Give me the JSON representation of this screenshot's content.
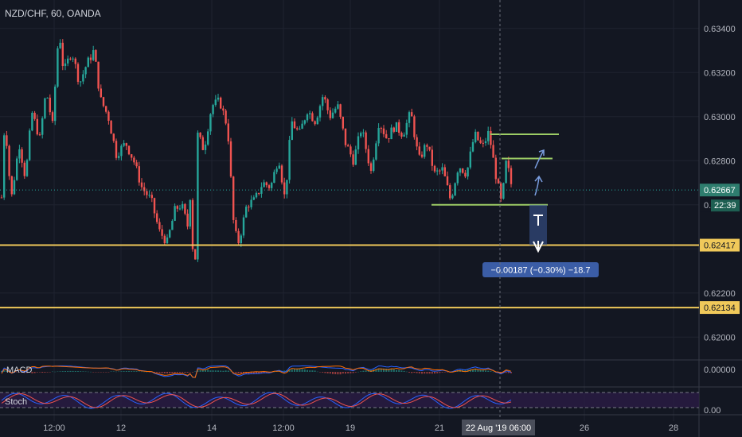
{
  "header": {
    "symbol_label": "NZD/CHF, 60, OANDA"
  },
  "colors": {
    "background": "#131722",
    "up": "#26a69a",
    "down": "#ef5350",
    "level": "#f0c95a",
    "trend": "#9ccc65",
    "price_tag": "#2e7d6e",
    "measure": "#3d5a99",
    "text": "#b2b5be",
    "stoch_band": "#2a1c45"
  },
  "chart_data": {
    "type": "candlestick",
    "ylim": [
      0.619,
      0.635
    ],
    "y_ticks": [
      "0.63400",
      "0.63200",
      "0.63000",
      "0.62800",
      "0.62200",
      "0.62000"
    ],
    "x_labels": [
      "12:00",
      "12",
      "14",
      "12:00",
      "19",
      "21",
      "26",
      "28"
    ],
    "last_price": "0.62667",
    "countdown": "22:39",
    "levels": [
      {
        "value": 0.62417,
        "label": "0.62417"
      },
      {
        "value": 0.62134,
        "label": "0.62134"
      }
    ],
    "trend_lines": [
      0.6292,
      0.6281,
      0.626
    ],
    "measure_label": "−0.00187 (−0.30%) −18.7",
    "crosshair_label": "22 Aug '19 06:00",
    "path": [
      [
        0,
        0.6245
      ],
      [
        6,
        0.63
      ],
      [
        14,
        0.6262
      ],
      [
        24,
        0.6288
      ],
      [
        32,
        0.6272
      ],
      [
        40,
        0.6302
      ],
      [
        50,
        0.629
      ],
      [
        58,
        0.6312
      ],
      [
        66,
        0.6296
      ],
      [
        74,
        0.634
      ],
      [
        80,
        0.632
      ],
      [
        90,
        0.633
      ],
      [
        100,
        0.6315
      ],
      [
        108,
        0.6323
      ],
      [
        118,
        0.633
      ],
      [
        126,
        0.6308
      ],
      [
        136,
        0.63
      ],
      [
        146,
        0.6283
      ],
      [
        158,
        0.6288
      ],
      [
        168,
        0.628
      ],
      [
        178,
        0.6268
      ],
      [
        190,
        0.6262
      ],
      [
        200,
        0.6248
      ],
      [
        210,
        0.6243
      ],
      [
        220,
        0.6258
      ],
      [
        228,
        0.626
      ],
      [
        236,
        0.625
      ],
      [
        240,
        0.627
      ],
      [
        244,
        0.6212
      ],
      [
        248,
        0.6292
      ],
      [
        256,
        0.6285
      ],
      [
        266,
        0.6305
      ],
      [
        276,
        0.6307
      ],
      [
        286,
        0.6295
      ],
      [
        294,
        0.6248
      ],
      [
        300,
        0.6243
      ],
      [
        310,
        0.626
      ],
      [
        320,
        0.6262
      ],
      [
        330,
        0.627
      ],
      [
        340,
        0.6268
      ],
      [
        350,
        0.6282
      ],
      [
        358,
        0.6262
      ],
      [
        366,
        0.6298
      ],
      [
        376,
        0.6292
      ],
      [
        386,
        0.6303
      ],
      [
        396,
        0.6298
      ],
      [
        406,
        0.631
      ],
      [
        414,
        0.63
      ],
      [
        424,
        0.6305
      ],
      [
        434,
        0.6288
      ],
      [
        444,
        0.628
      ],
      [
        454,
        0.6295
      ],
      [
        466,
        0.6275
      ],
      [
        476,
        0.6298
      ],
      [
        486,
        0.629
      ],
      [
        496,
        0.6296
      ],
      [
        506,
        0.6292
      ],
      [
        516,
        0.6302
      ],
      [
        526,
        0.628
      ],
      [
        536,
        0.6288
      ],
      [
        546,
        0.6274
      ],
      [
        556,
        0.6276
      ],
      [
        566,
        0.6262
      ],
      [
        576,
        0.6278
      ],
      [
        586,
        0.6274
      ],
      [
        596,
        0.6292
      ],
      [
        606,
        0.6286
      ],
      [
        614,
        0.6293
      ],
      [
        622,
        0.6275
      ],
      [
        630,
        0.626
      ],
      [
        636,
        0.628
      ],
      [
        644,
        0.6266
      ]
    ]
  },
  "indicators": {
    "macd_label": "MACD",
    "stoch_label": "Stoch"
  },
  "macd_axis": [
    "0.00000"
  ],
  "stoch_axis": [
    "0.00"
  ]
}
